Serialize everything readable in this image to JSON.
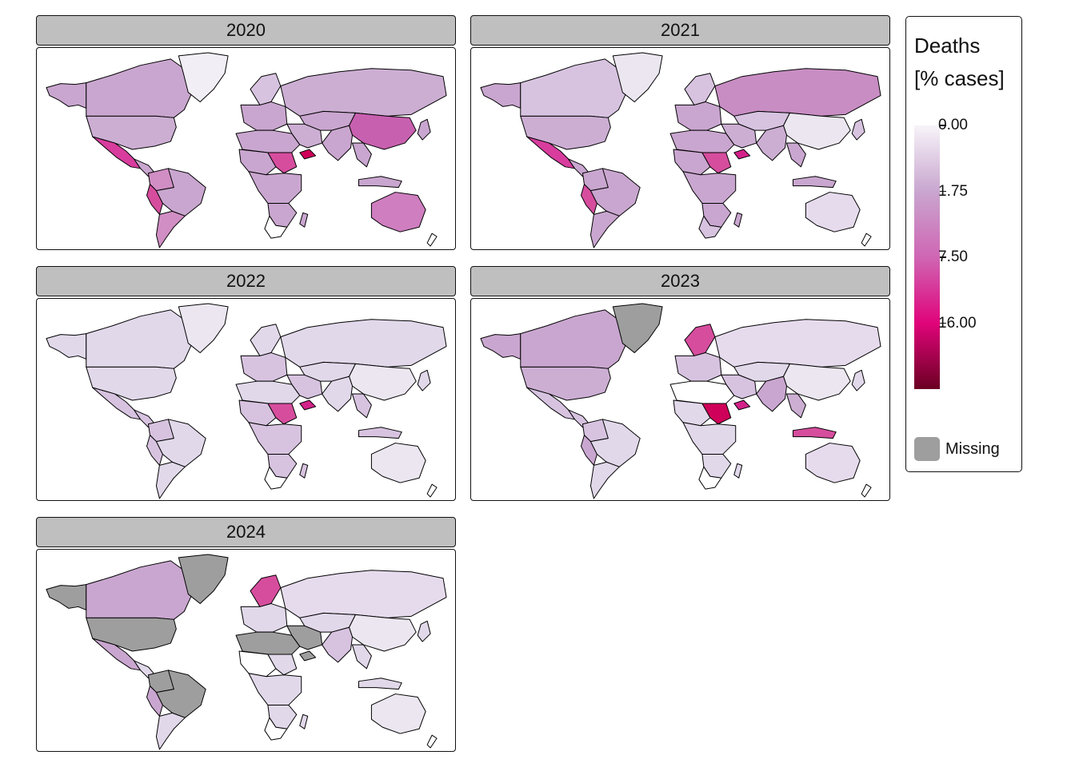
{
  "panels": [
    {
      "title": "2020",
      "fills": {
        "greenland": "#f2eef6",
        "northam_west": "#c9a6cf",
        "canada": "#c9a6cf",
        "usa": "#ccaed3",
        "mexico": "#d83d9e",
        "centam": "#c9a6cf",
        "southam_north": "#d08ec4",
        "peru": "#d64d9e",
        "brazil": "#c9a6cf",
        "southam_south": "#d08ec4",
        "scandinavia": "#d7c3e0",
        "europe": "#c9a6cf",
        "russia": "#ccaed3",
        "mideast": "#ccaed3",
        "yemen": "#cf0059",
        "nafrica": "#c9a6cf",
        "sahel": "#c9a6cf",
        "sudan": "#d64d9e",
        "cafrica": "#c9a6cf",
        "safrica": "#c9a6cf",
        "southafrica": "#ffffff",
        "madagascar": "#c9a6cf",
        "centralasia": "#c9a6cf",
        "china": "#c860b0",
        "india": "#c9a6cf",
        "seasia": "#c9a6cf",
        "japan": "#c9a6cf",
        "indonesia": "#c9a6cf",
        "australia": "#cf7ec0",
        "nz": "#ffffff"
      }
    },
    {
      "title": "2021",
      "fills": {
        "greenland": "#ebe6f0",
        "northam_west": "#c9a6cf",
        "canada": "#d7c3e0",
        "usa": "#ccaed3",
        "mexico": "#d83d9e",
        "centam": "#c9a6cf",
        "southam_north": "#c9a6cf",
        "peru": "#d64d9e",
        "brazil": "#c9a6cf",
        "southam_south": "#c9a6cf",
        "scandinavia": "#d7c3e0",
        "europe": "#c9a6cf",
        "russia": "#c88dc3",
        "mideast": "#ccaed3",
        "yemen": "#d3228a",
        "nafrica": "#c9a6cf",
        "sahel": "#c9a6cf",
        "sudan": "#d64d9e",
        "cafrica": "#c9a6cf",
        "safrica": "#c9a6cf",
        "southafrica": "#d7c3e0",
        "madagascar": "#c9a6cf",
        "centralasia": "#d7c3e0",
        "china": "#ebe6f0",
        "india": "#ccaed3",
        "seasia": "#c9a6cf",
        "japan": "#d7c3e0",
        "indonesia": "#c9a6cf",
        "australia": "#e6dbed",
        "nz": "#ffffff"
      }
    },
    {
      "title": "2022",
      "fills": {
        "greenland": "#ebe6f0",
        "northam_west": "#e1d8ea",
        "canada": "#e1d8ea",
        "usa": "#e1d8ea",
        "mexico": "#d7c3e0",
        "centam": "#d7c3e0",
        "southam_north": "#d7c3e0",
        "peru": "#d7c3e0",
        "brazil": "#e1d8ea",
        "southam_south": "#e1d8ea",
        "scandinavia": "#e1d8ea",
        "europe": "#d7c3e0",
        "russia": "#e1d8ea",
        "mideast": "#d7c3e0",
        "yemen": "#d3228a",
        "nafrica": "#e1d8ea",
        "sahel": "#d7c3e0",
        "sudan": "#d64d9e",
        "cafrica": "#d7c3e0",
        "safrica": "#d7c3e0",
        "southafrica": "#ffffff",
        "madagascar": "#d7c3e0",
        "centralasia": "#e1d8ea",
        "china": "#ebe6f0",
        "india": "#e1d8ea",
        "seasia": "#d7c3e0",
        "japan": "#e1d8ea",
        "indonesia": "#d7c3e0",
        "australia": "#ebe6f0",
        "nz": "#ffffff"
      }
    },
    {
      "title": "2023",
      "fills": {
        "greenland": "#9e9e9e",
        "northam_west": "#c9a6cf",
        "canada": "#c9a6cf",
        "usa": "#ccaed3",
        "mexico": "#d7c3e0",
        "centam": "#d7c3e0",
        "southam_north": "#d7c3e0",
        "peru": "#c9a6cf",
        "brazil": "#e1d8ea",
        "southam_south": "#e1d8ea",
        "scandinavia": "#d64d9e",
        "europe": "#d7c3e0",
        "russia": "#e6dbed",
        "mideast": "#d7c3e0",
        "yemen": "#d3228a",
        "nafrica": "#ffffff",
        "sahel": "#e1d8ea",
        "sudan": "#cf0059",
        "cafrica": "#e1d8ea",
        "safrica": "#e1d8ea",
        "southafrica": "#ffffff",
        "madagascar": "#e1d8ea",
        "centralasia": "#e1d8ea",
        "china": "#ebe6f0",
        "india": "#c9a6cf",
        "seasia": "#ccaed3",
        "japan": "#e1d8ea",
        "indonesia": "#d64d9e",
        "australia": "#e6dbed",
        "nz": "#ffffff"
      }
    },
    {
      "title": "2024",
      "fills": {
        "greenland": "#9e9e9e",
        "northam_west": "#9e9e9e",
        "canada": "#c9a6cf",
        "usa": "#9e9e9e",
        "mexico": "#c9a6cf",
        "centam": "#e1d8ea",
        "southam_north": "#9e9e9e",
        "peru": "#c9a6cf",
        "brazil": "#9e9e9e",
        "southam_south": "#e1d8ea",
        "scandinavia": "#d64d9e",
        "europe": "#e1d8ea",
        "russia": "#e6dbed",
        "mideast": "#9e9e9e",
        "yemen": "#9e9e9e",
        "nafrica": "#9e9e9e",
        "sahel": "#ffffff",
        "sudan": "#e1d8ea",
        "cafrica": "#e1d8ea",
        "safrica": "#e1d8ea",
        "southafrica": "#ffffff",
        "madagascar": "#e1d8ea",
        "centralasia": "#e1d8ea",
        "china": "#ebe6f0",
        "india": "#d7c3e0",
        "seasia": "#e1d8ea",
        "japan": "#e1d8ea",
        "indonesia": "#e1d8ea",
        "australia": "#ebe6f0",
        "nz": "#ffffff"
      }
    }
  ],
  "legend": {
    "title_line1": "Deaths",
    "title_line2": "[% cases]",
    "ticks": [
      {
        "label": "0.00",
        "frac": 0.0
      },
      {
        "label": "1.75",
        "frac": 0.25
      },
      {
        "label": "7.50",
        "frac": 0.5
      },
      {
        "label": "16.00",
        "frac": 0.75
      }
    ],
    "gradient": [
      "#f7f4f9",
      "#c9a6cf",
      "#cf66b4",
      "#e0047a",
      "#6b0022"
    ],
    "missing_label": "Missing",
    "missing_color": "#9e9e9e"
  }
}
